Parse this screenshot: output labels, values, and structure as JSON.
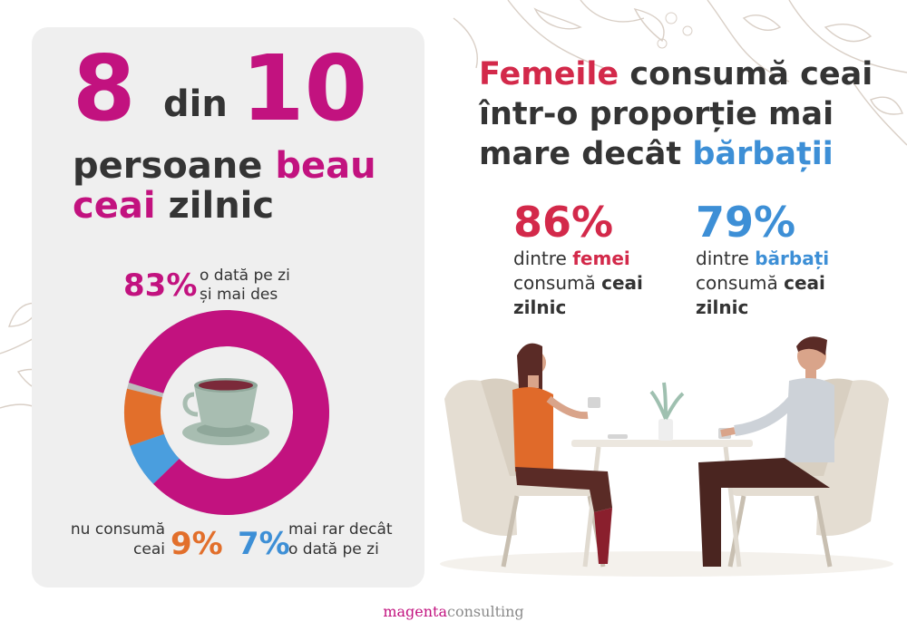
{
  "headline": {
    "num1": "8",
    "din": "din",
    "num2": "10",
    "line2_a": "persoane",
    "line2_b": "beau",
    "line3_a": "ceai",
    "line3_b": "zilnic"
  },
  "right_title": {
    "part1_highlight": "Femeile",
    "part1_rest": " consumă ceai",
    "line2": "într-o proporție mai",
    "line3_a": "mare decât ",
    "line3_highlight": "bărbații"
  },
  "stats": {
    "women_pct": "86%",
    "women_line1_a": "dintre ",
    "women_line1_b": "femei",
    "women_line2_a": "consumă ",
    "women_line2_b": "ceai",
    "women_line3": "zilnic",
    "men_pct": "79%",
    "men_line1_a": "dintre ",
    "men_line1_b": "bărbați",
    "men_line2_a": "consumă ",
    "men_line2_b": "ceai",
    "men_line3": "zilnic"
  },
  "chart_data": {
    "type": "pie",
    "donut": true,
    "slices": [
      {
        "value": 83,
        "label_pct": "83%",
        "label_text_1": "o dată pe zi",
        "label_text_2": "și mai des",
        "color": "#c2127f"
      },
      {
        "value": 7,
        "label_pct": "7%",
        "label_text_1": "mai rar decât",
        "label_text_2": "o dată pe zi",
        "color": "#4a9ede"
      },
      {
        "value": 9,
        "label_pct": "9%",
        "label_text_1": "nu consumă",
        "label_text_2": "ceai",
        "color": "#e26f2b"
      }
    ],
    "start_angle_deg": -163,
    "gap_color": "#bcbcbc"
  },
  "footer": {
    "brand_a": "magenta",
    "brand_b": "consulting"
  },
  "colors": {
    "magenta": "#c2127f",
    "red": "#d3294a",
    "blue": "#3d8fd6",
    "orange": "#e26f2b",
    "panel": "#efefef"
  }
}
